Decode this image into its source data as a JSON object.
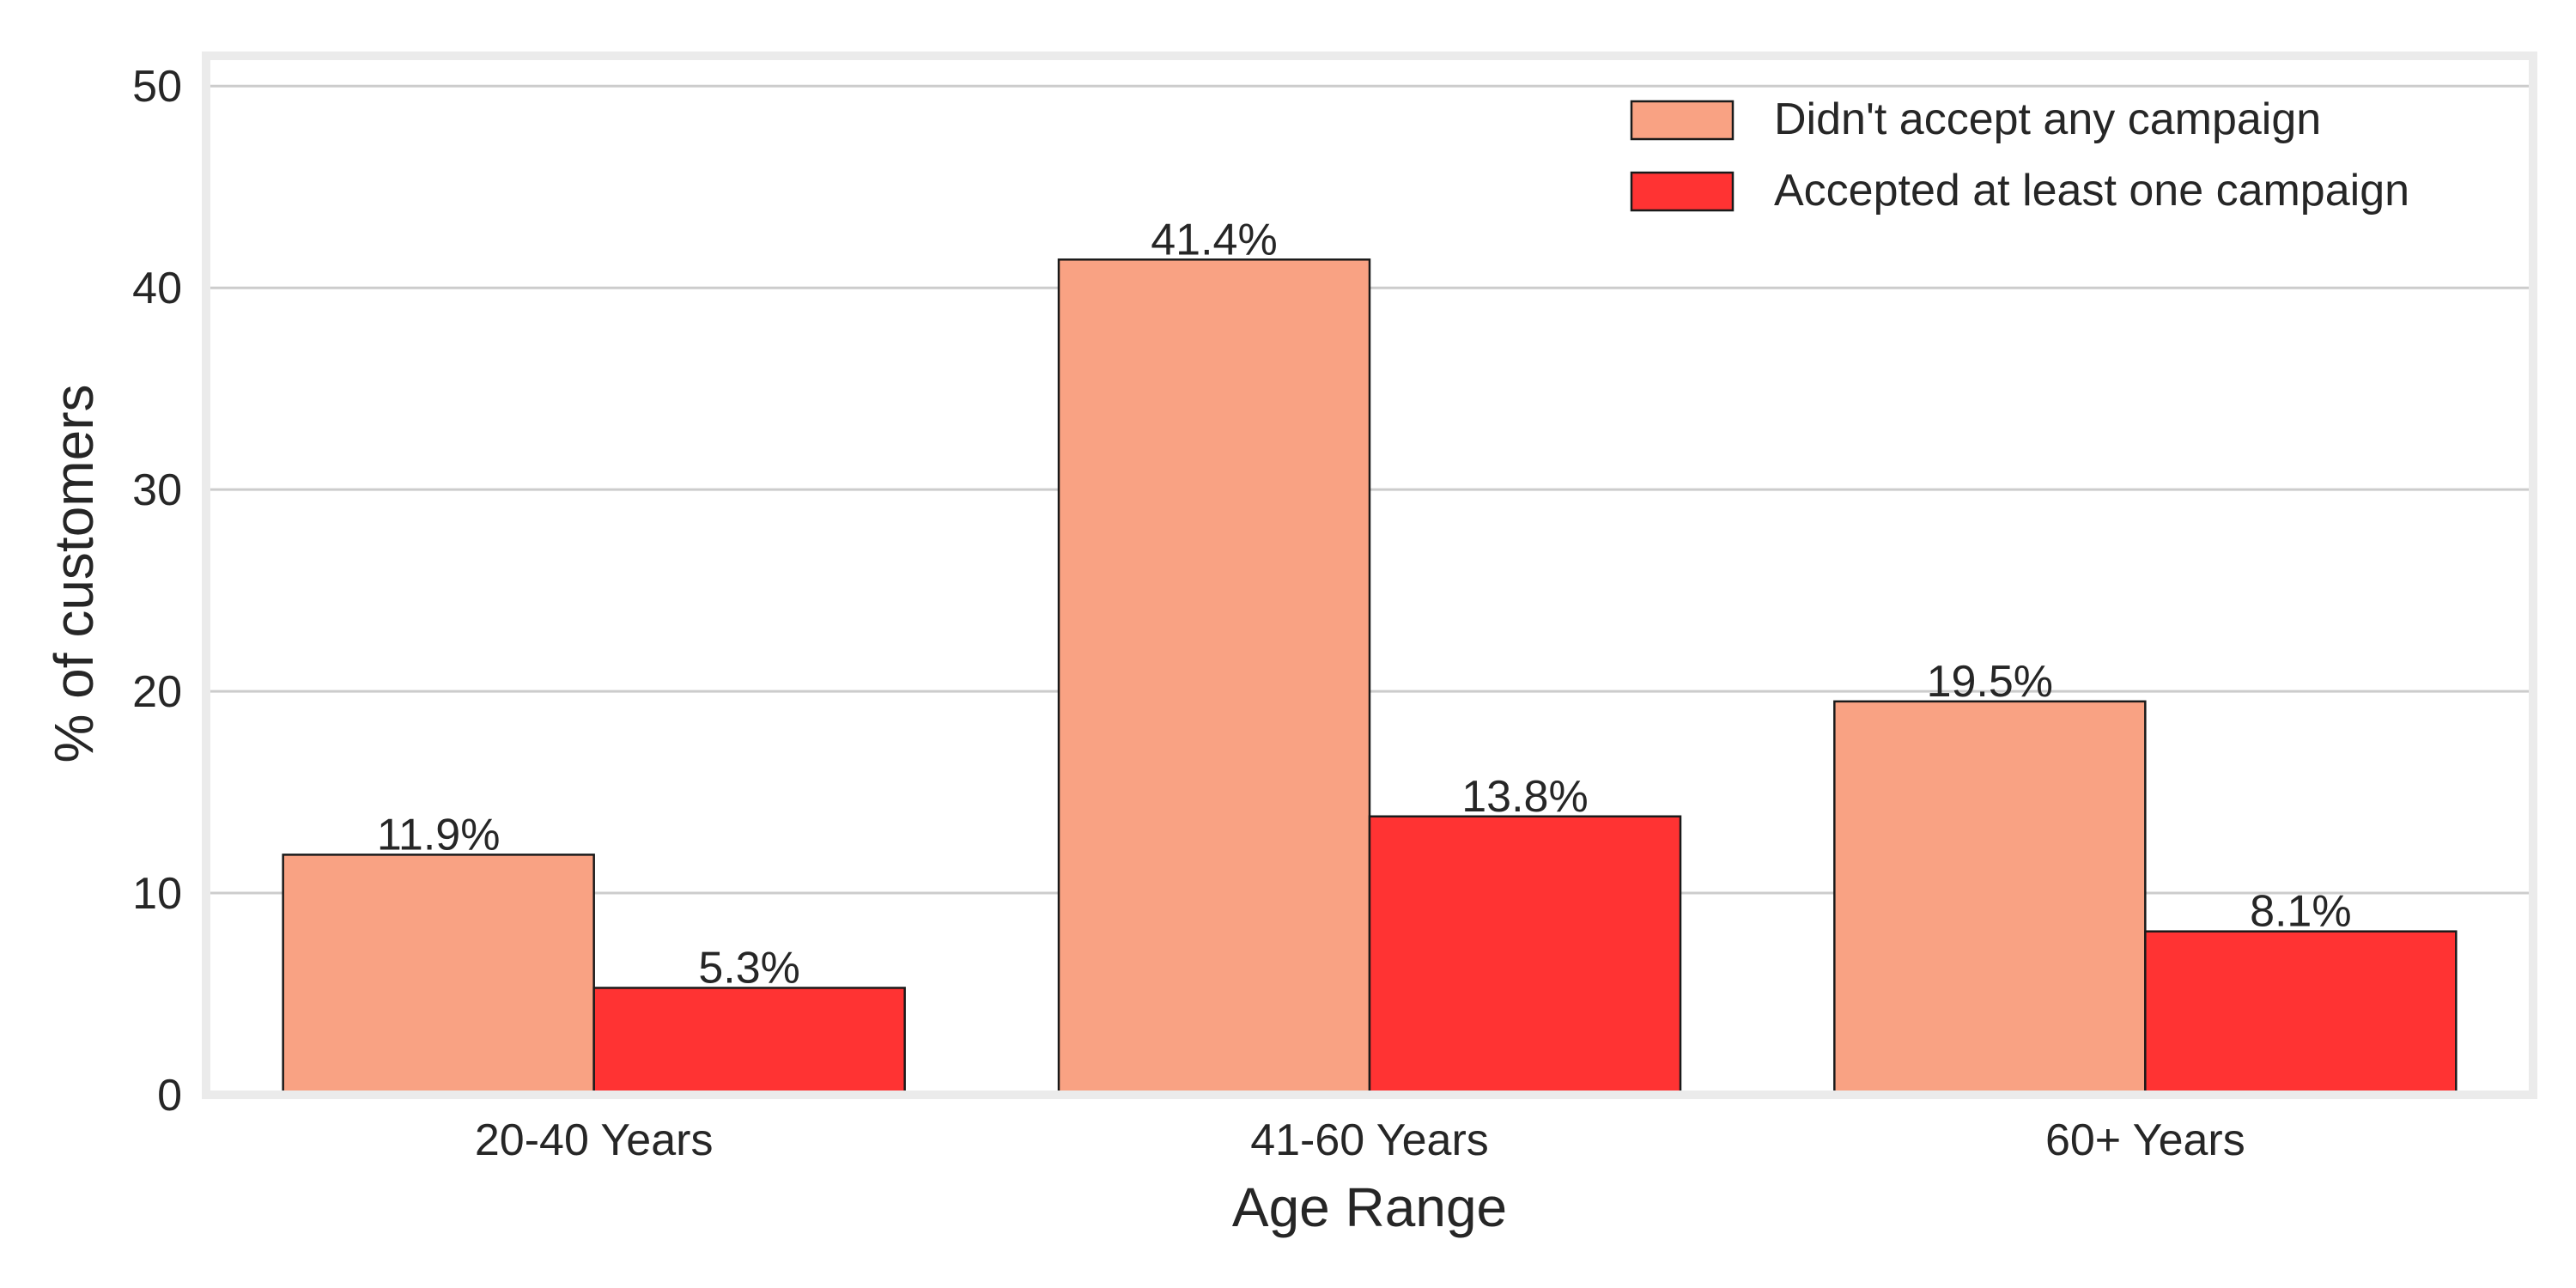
{
  "chart_data": {
    "type": "bar",
    "title": "",
    "xlabel": "Age Range",
    "ylabel": "% of customers",
    "categories": [
      "20-40 Years",
      "41-60 Years",
      "60+ Years"
    ],
    "series": [
      {
        "name": "Didn't accept any campaign",
        "values": [
          11.9,
          41.4,
          19.5
        ],
        "labels": [
          "11.9%",
          "41.4%",
          "19.5%"
        ],
        "color": "#f9a283"
      },
      {
        "name": "Accepted at least one campaign",
        "values": [
          5.3,
          13.8,
          8.1
        ],
        "labels": [
          "5.3%",
          "13.8%",
          "8.1%"
        ],
        "color": "#ff3333"
      }
    ],
    "ylim": [
      0,
      51.5
    ],
    "yticks": [
      0,
      10,
      20,
      30,
      40,
      50
    ],
    "grid": "horizontal",
    "legend_position": "top-right"
  }
}
